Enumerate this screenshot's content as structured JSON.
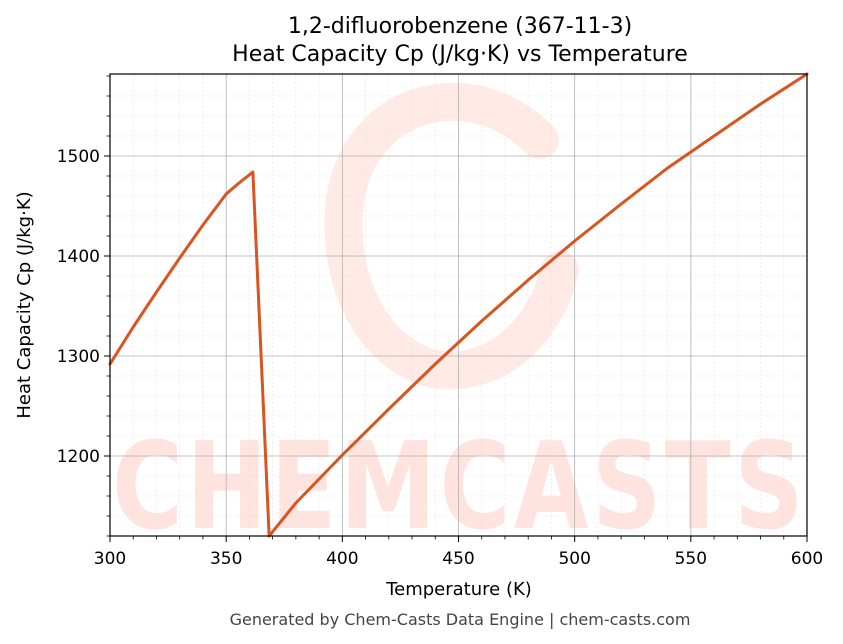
{
  "chart_data": {
    "type": "line",
    "title_line1": "1,2-difluorobenzene (367-11-3)",
    "title_line2": "Heat Capacity Cp (J/kg·K) vs Temperature",
    "xlabel": "Temperature (K)",
    "ylabel": "Heat Capacity Cp (J/kg·K)",
    "xlim": [
      300,
      600
    ],
    "ylim": [
      1120,
      1582
    ],
    "x_ticks": [
      300,
      350,
      400,
      450,
      500,
      550,
      600
    ],
    "y_ticks": [
      1200,
      1300,
      1400,
      1500
    ],
    "grid": true,
    "series": [
      {
        "color": "#d9541e",
        "x": [
          300,
          310,
          320,
          330,
          340,
          350,
          355,
          361.5,
          368.5,
          380,
          400,
          420,
          440,
          460,
          480,
          500,
          520,
          540,
          560,
          580,
          600
        ],
        "y": [
          1292,
          1329,
          1364,
          1398,
          1431,
          1462,
          1472,
          1484,
          1120,
          1153,
          1201,
          1247,
          1292,
          1335,
          1376,
          1415,
          1452,
          1488,
          1520,
          1552,
          1582
        ]
      }
    ]
  },
  "watermark": {
    "text": "CHEMCASTS",
    "color": "#ff5a3c"
  },
  "footer": "Generated by Chem-Casts Data Engine | chem-casts.com"
}
